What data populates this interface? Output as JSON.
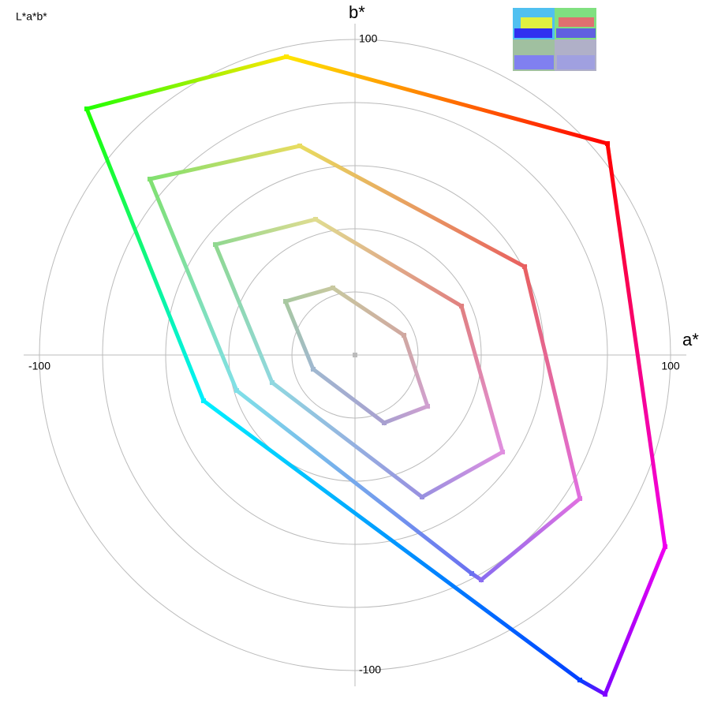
{
  "chart_data": {
    "type": "polar-loops",
    "title": "L*a*b*",
    "x_label": "a*",
    "y_label": "b*",
    "xlim": [
      -105,
      105
    ],
    "ylim": [
      -105,
      105
    ],
    "xticks": [
      -100,
      100
    ],
    "yticks": [
      -100,
      100
    ],
    "rings": [
      20,
      40,
      60,
      80,
      100
    ],
    "grid": true,
    "loops": [
      {
        "a": [
          -21.75,
          80,
          98.25,
          79.25,
          71.25,
          -48,
          -85
        ],
        "b": [
          94.5,
          67,
          -60.75,
          -107.5,
          -103,
          -14.5,
          78
        ],
        "colors": [
          "#ffe600",
          "#ff0000",
          "#f000f0",
          "#8000ff",
          "#0040ff",
          "#00f0ff",
          "#20ff00"
        ]
      },
      {
        "a": [
          -17.5,
          53.75,
          71.25,
          40,
          37,
          -37.5,
          -65
        ],
        "b": [
          66.25,
          28,
          -45.5,
          -71.25,
          -69.25,
          -11.25,
          55.75
        ],
        "colors": [
          "#e8dc60",
          "#e86060",
          "#e070e0",
          "#8a6cf0",
          "#6a70f0",
          "#80e0e8",
          "#80e070"
        ]
      },
      {
        "a": [
          -12.5,
          33.75,
          46.75,
          21.25,
          -26.25,
          -44.25
        ],
        "b": [
          43,
          15.5,
          -30.75,
          -45,
          -8.75,
          35
        ],
        "colors": [
          "#e0dc90",
          "#e08080",
          "#e090e0",
          "#9890e0",
          "#90d8e0",
          "#90d890"
        ]
      },
      {
        "a": [
          -7,
          15.5,
          23,
          9.25,
          -13.25,
          -22
        ],
        "b": [
          21.25,
          6.25,
          -16.25,
          -21.5,
          -4.5,
          17
        ],
        "colors": [
          "#c8c8a0",
          "#d0a8a0",
          "#d0a0d0",
          "#a8a0d0",
          "#a0b8d0",
          "#a8c8a0"
        ]
      }
    ]
  }
}
